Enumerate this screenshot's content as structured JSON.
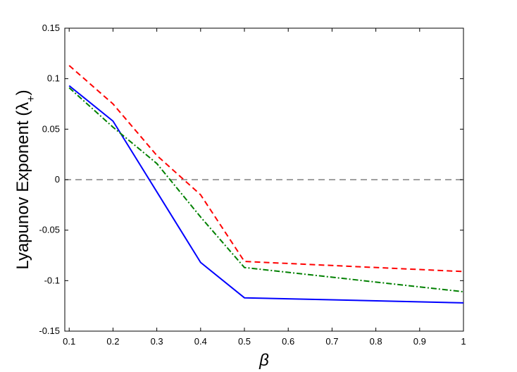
{
  "chart_data": {
    "type": "line",
    "title": "",
    "xlabel": "β",
    "ylabel": {
      "main": "Lyapunov Exponent (λ",
      "subscript": "+",
      "suffix": ")"
    },
    "x": [
      0.1,
      0.2,
      0.3,
      0.4,
      0.5,
      1.0
    ],
    "xlim": [
      0.09,
      1.0
    ],
    "ylim": [
      -0.15,
      0.15
    ],
    "x_ticks": [
      0.1,
      0.2,
      0.3,
      0.4,
      0.5,
      0.6,
      0.7,
      0.8,
      0.9,
      1.0
    ],
    "x_tick_labels": [
      "0.1",
      "0.2",
      "0.3",
      "0.4",
      "0.5",
      "0.6",
      "0.7",
      "0.8",
      "0.9",
      "1"
    ],
    "y_ticks": [
      -0.15,
      -0.1,
      -0.05,
      0,
      0.05,
      0.1,
      0.15
    ],
    "y_tick_labels": [
      "-0.15",
      "-0.1",
      "-0.05",
      "0",
      "0.05",
      "0.1",
      "0.15"
    ],
    "grid": false,
    "legend": "none",
    "series": [
      {
        "values": [
          0.093,
          0.058,
          -0.012,
          -0.082,
          -0.117,
          -0.122
        ],
        "color": "#0000ff",
        "style": "solid"
      },
      {
        "values": [
          0.113,
          0.075,
          0.024,
          -0.015,
          -0.081,
          -0.091
        ],
        "color": "#ff0000",
        "style": "dashed"
      },
      {
        "values": [
          0.091,
          0.052,
          0.016,
          -0.037,
          -0.087,
          -0.111
        ],
        "color": "#008000",
        "style": "dash-dot"
      }
    ],
    "reference_line": {
      "y": 0,
      "color": "#808080",
      "style": "dashed"
    }
  }
}
